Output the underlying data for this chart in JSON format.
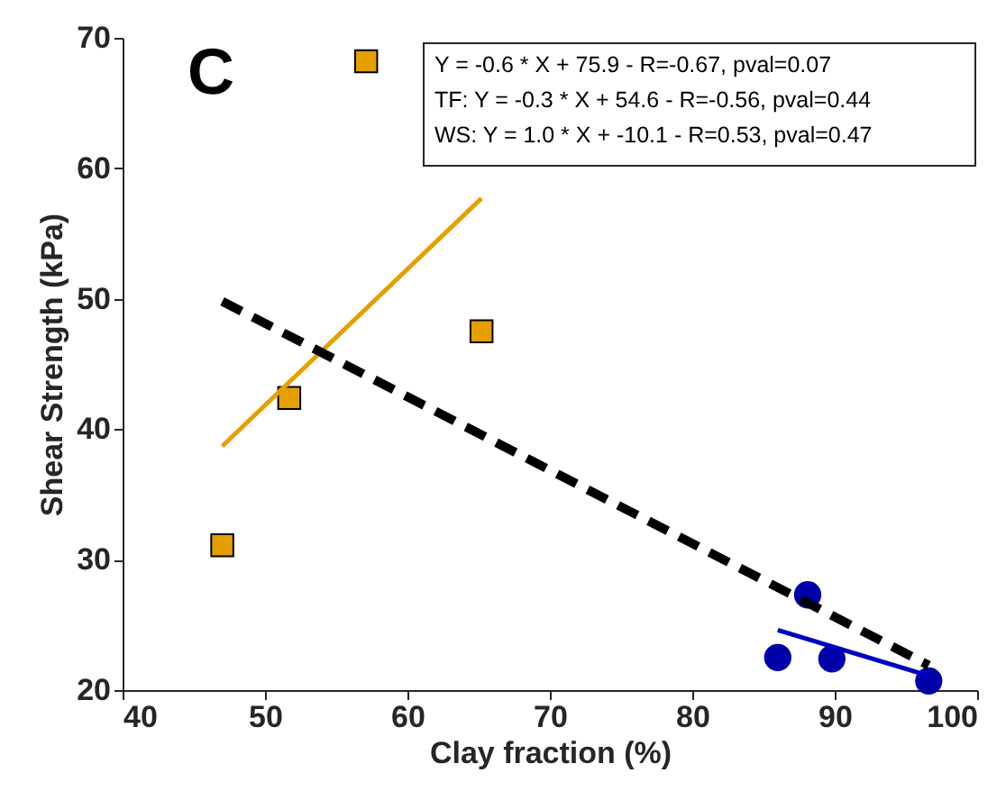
{
  "chart_data": {
    "type": "scatter",
    "xlabel": "Clay fraction (%)",
    "ylabel": "Shear Strength (kPa)",
    "xlim": [
      40,
      100
    ],
    "xticks": [
      40,
      50,
      60,
      70,
      80,
      90,
      100
    ],
    "ylim": [
      20,
      70
    ],
    "yticks": [
      20,
      30,
      40,
      50,
      60,
      70
    ],
    "grid": false,
    "annotations": [
      "C",
      "Y = -0.6 * X + 75.9 - R=-0.67, pval=0.07",
      "TF: Y = -0.3 * X + 54.6 - R=-0.56, pval=0.44",
      "WS: Y = 1.0 * X + -10.1 - R=0.53, pval=0.47"
    ],
    "series": [
      {
        "type": "scatter",
        "color": "#e69f00",
        "marker": "square",
        "x": [
          47,
          51.7,
          57.1,
          65.2
        ],
        "values": [
          31.1,
          42.4,
          68.2,
          47.5
        ]
      },
      {
        "type": "scatter",
        "color": "#0000a8",
        "marker": "circle",
        "x": [
          86,
          88.1,
          89.8,
          96.6
        ],
        "values": [
          22.5,
          27.3,
          22.4,
          20.7
        ]
      },
      {
        "type": "line",
        "color": "#e69f00",
        "line_style": "solid",
        "x": [
          47,
          65.2
        ],
        "values": [
          38.7,
          57.7
        ]
      },
      {
        "type": "line",
        "color": "#0000c0",
        "line_style": "solid",
        "x": [
          86,
          96.6
        ],
        "values": [
          24.6,
          21.1
        ]
      },
      {
        "type": "line",
        "color": "#000000",
        "line_style": "dashed",
        "x": [
          47,
          96.6
        ],
        "values": [
          49.8,
          21.9
        ]
      }
    ]
  }
}
